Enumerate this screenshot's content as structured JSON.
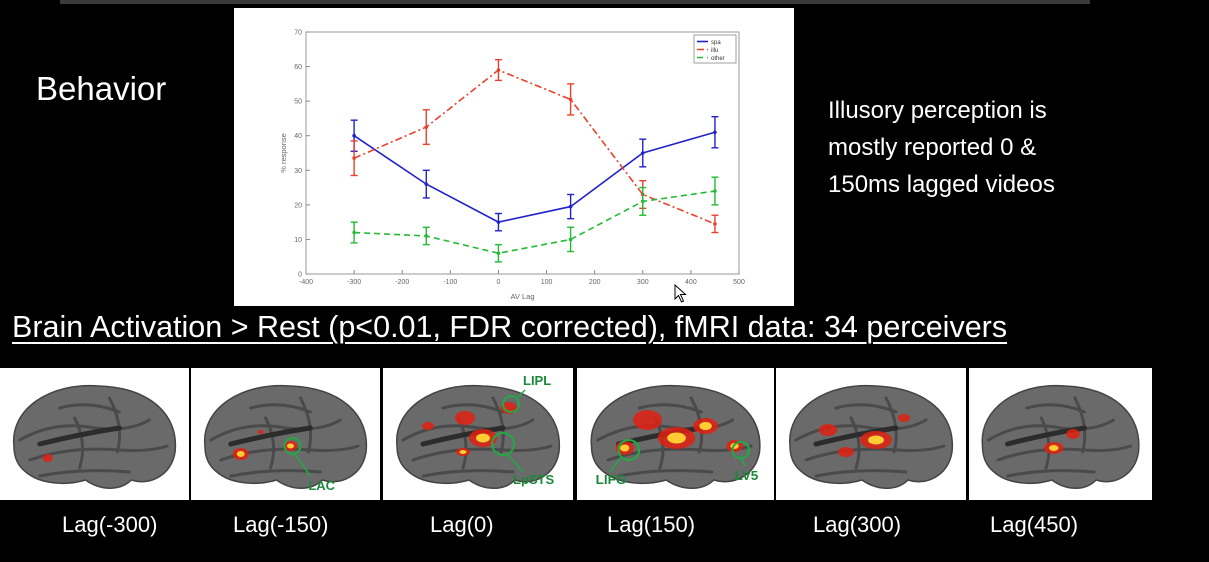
{
  "slide": {
    "behavior_label": "Behavior",
    "note_lines": [
      "Illusory perception is",
      "mostly reported 0 &",
      "150ms lagged videos"
    ],
    "heading": "Brain Activation > Rest (p<0.01, FDR corrected), fMRI data: 34 perceivers"
  },
  "chart_data": {
    "type": "line",
    "title": "",
    "xlabel": "AV Lag",
    "ylabel": "% response",
    "xlim": [
      -400,
      500
    ],
    "ylim": [
      0,
      70
    ],
    "x_ticks": [
      -400,
      -300,
      -200,
      -100,
      0,
      100,
      200,
      300,
      400,
      500
    ],
    "y_ticks": [
      0,
      10,
      20,
      30,
      40,
      50,
      60,
      70
    ],
    "x": [
      -300,
      -150,
      0,
      150,
      300,
      450
    ],
    "legend_position": "top-right",
    "grid": false,
    "series": [
      {
        "name": "spa",
        "color": "#2222cc",
        "dash": "solid",
        "values": [
          40,
          26,
          15,
          19.5,
          35,
          41
        ],
        "errors": [
          4.5,
          4,
          2.5,
          3.5,
          4,
          4.5
        ]
      },
      {
        "name": "illu",
        "color": "#e8412b",
        "dash": "dashdot",
        "values": [
          33.5,
          42.5,
          59,
          50.5,
          23,
          14.5
        ],
        "errors": [
          5,
          5,
          3,
          4.5,
          4,
          2.5
        ]
      },
      {
        "name": "other",
        "color": "#22bb33",
        "dash": "dashed",
        "values": [
          12,
          11,
          6,
          10,
          21,
          24
        ],
        "errors": [
          3,
          2.5,
          2.5,
          3.5,
          4,
          4
        ]
      }
    ]
  },
  "brain_panels": [
    {
      "label": "Lag(-300)",
      "annotations": []
    },
    {
      "label": "Lag(-150)",
      "annotations": [
        "LAC"
      ]
    },
    {
      "label": "Lag(0)",
      "annotations": [
        "LIPL",
        "LpSTS"
      ]
    },
    {
      "label": "Lag(150)",
      "annotations": [
        "LIFG",
        "LV5"
      ]
    },
    {
      "label": "Lag(300)",
      "annotations": []
    },
    {
      "label": "Lag(450)",
      "annotations": []
    }
  ],
  "colors": {
    "background": "#000000",
    "activation_hot": "#ffcc33",
    "activation": "#e02010",
    "roi_circle": "#22aa44"
  }
}
